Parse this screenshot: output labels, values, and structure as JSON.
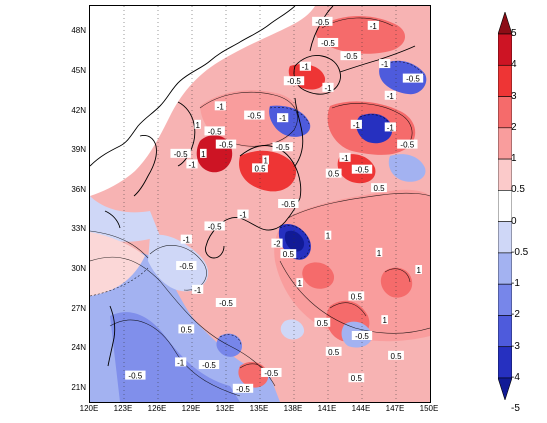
{
  "map": {
    "lat_ticks": [
      {
        "label": "48N",
        "lat": 48
      },
      {
        "label": "45N",
        "lat": 45
      },
      {
        "label": "42N",
        "lat": 42
      },
      {
        "label": "39N",
        "lat": 39
      },
      {
        "label": "36N",
        "lat": 36
      },
      {
        "label": "33N",
        "lat": 33
      },
      {
        "label": "30N",
        "lat": 30
      },
      {
        "label": "27N",
        "lat": 27
      },
      {
        "label": "24N",
        "lat": 24
      },
      {
        "label": "21N",
        "lat": 21
      }
    ],
    "lon_ticks": [
      {
        "label": "120E",
        "lon": 120
      },
      {
        "label": "123E",
        "lon": 123
      },
      {
        "label": "126E",
        "lon": 126
      },
      {
        "label": "129E",
        "lon": 129
      },
      {
        "label": "132E",
        "lon": 132
      },
      {
        "label": "135E",
        "lon": 135
      },
      {
        "label": "138E",
        "lon": 138
      },
      {
        "label": "141E",
        "lon": 141
      },
      {
        "label": "144E",
        "lon": 144
      },
      {
        "label": "147E",
        "lon": 147
      },
      {
        "label": "150E",
        "lon": 150
      }
    ],
    "contour_labels": [
      {
        "text": "-0.5",
        "lon": 140.5,
        "lat": 48.8
      },
      {
        "text": "-1",
        "lon": 145.0,
        "lat": 48.5
      },
      {
        "text": "-0.5",
        "lon": 141.0,
        "lat": 47.2
      },
      {
        "text": "-0.5",
        "lon": 143.0,
        "lat": 46.2
      },
      {
        "text": "-1",
        "lon": 139.0,
        "lat": 45.4
      },
      {
        "text": "-1",
        "lon": 146.0,
        "lat": 45.6
      },
      {
        "text": "-0.5",
        "lon": 138.0,
        "lat": 44.3
      },
      {
        "text": "-0.5",
        "lon": 148.5,
        "lat": 44.5
      },
      {
        "text": "-1",
        "lon": 141.0,
        "lat": 43.8
      },
      {
        "text": "-1",
        "lon": 146.5,
        "lat": 43.2
      },
      {
        "text": "-1",
        "lon": 131.5,
        "lat": 42.4
      },
      {
        "text": "-0.5",
        "lon": 134.5,
        "lat": 41.7
      },
      {
        "text": "1",
        "lon": 129.5,
        "lat": 41.0
      },
      {
        "text": "-0.5",
        "lon": 131.0,
        "lat": 40.5
      },
      {
        "text": "-1",
        "lon": 137.0,
        "lat": 41.5
      },
      {
        "text": "-1",
        "lon": 143.5,
        "lat": 41.0
      },
      {
        "text": "-1",
        "lon": 146.5,
        "lat": 40.8
      },
      {
        "text": "-0.5",
        "lon": 148.0,
        "lat": 39.5
      },
      {
        "text": "-0.5",
        "lon": 132.0,
        "lat": 39.5
      },
      {
        "text": "-0.5",
        "lon": 137.0,
        "lat": 39.3
      },
      {
        "text": "-0.5",
        "lon": 128.0,
        "lat": 38.8
      },
      {
        "text": "1",
        "lon": 130.0,
        "lat": 38.8
      },
      {
        "text": "-1",
        "lon": 129.0,
        "lat": 38.0
      },
      {
        "text": "1",
        "lon": 135.5,
        "lat": 38.3
      },
      {
        "text": "0.5",
        "lon": 135.0,
        "lat": 37.7
      },
      {
        "text": "-1",
        "lon": 142.5,
        "lat": 38.5
      },
      {
        "text": "-0.5",
        "lon": 144.0,
        "lat": 37.6
      },
      {
        "text": "0.5",
        "lon": 141.5,
        "lat": 37.3
      },
      {
        "text": "0.5",
        "lon": 145.5,
        "lat": 36.2
      },
      {
        "text": "-0.5",
        "lon": 137.5,
        "lat": 35.0
      },
      {
        "text": "-1",
        "lon": 133.5,
        "lat": 34.2
      },
      {
        "text": "-0.5",
        "lon": 131.0,
        "lat": 33.3
      },
      {
        "text": "-2",
        "lon": 136.5,
        "lat": 32.0
      },
      {
        "text": "-1",
        "lon": 128.5,
        "lat": 32.3
      },
      {
        "text": "1",
        "lon": 141.0,
        "lat": 32.6
      },
      {
        "text": "1",
        "lon": 145.5,
        "lat": 31.3
      },
      {
        "text": "0.5",
        "lon": 137.5,
        "lat": 31.2
      },
      {
        "text": "-0.5",
        "lon": 128.5,
        "lat": 30.3
      },
      {
        "text": "1",
        "lon": 149.0,
        "lat": 30.0
      },
      {
        "text": "-1",
        "lon": 129.5,
        "lat": 28.5
      },
      {
        "text": "-0.5",
        "lon": 132.0,
        "lat": 27.5
      },
      {
        "text": "1",
        "lon": 138.5,
        "lat": 29.0
      },
      {
        "text": "0.5",
        "lon": 143.5,
        "lat": 28.0
      },
      {
        "text": "1",
        "lon": 146.0,
        "lat": 26.2
      },
      {
        "text": "0.5",
        "lon": 128.5,
        "lat": 25.5
      },
      {
        "text": "0.5",
        "lon": 140.5,
        "lat": 26.0
      },
      {
        "text": "-0.5",
        "lon": 144.0,
        "lat": 25.0
      },
      {
        "text": "0.5",
        "lon": 141.5,
        "lat": 23.8
      },
      {
        "text": "-1",
        "lon": 128.0,
        "lat": 23.0
      },
      {
        "text": "-0.5",
        "lon": 130.5,
        "lat": 22.8
      },
      {
        "text": "0.5",
        "lon": 147.0,
        "lat": 23.5
      },
      {
        "text": "-0.5",
        "lon": 124.0,
        "lat": 22.0
      },
      {
        "text": "-0.5",
        "lon": 136.0,
        "lat": 22.2
      },
      {
        "text": "0.5",
        "lon": 143.5,
        "lat": 21.8
      },
      {
        "text": "-0.5",
        "lon": 133.5,
        "lat": 21.0
      }
    ]
  },
  "colorbar": {
    "labels": [
      "5",
      "4",
      "3",
      "2",
      "1",
      "0.5",
      "0",
      "-0.5",
      "-1",
      "-2",
      "-3",
      "-4",
      "-5"
    ],
    "colors": [
      "#8c0d16",
      "#cd1424",
      "#ee3535",
      "#f56b6b",
      "#f99d9d",
      "#fbcaca",
      "#ffffff",
      "#cfd7f7",
      "#a3b2f1",
      "#7786ea",
      "#4e5bdc",
      "#2630c0",
      "#111a96"
    ]
  }
}
